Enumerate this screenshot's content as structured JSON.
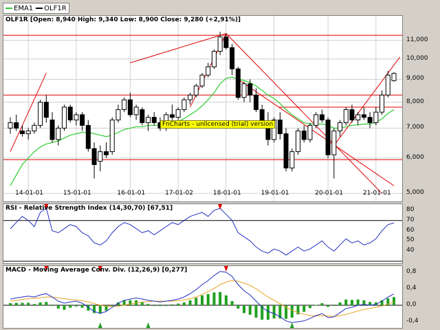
{
  "legend": [
    "EMA1",
    "OLF1R"
  ],
  "watermark": "FnCharts - unlicensed (trial) version",
  "colors": {
    "ema": "#2ecc2e",
    "trend": "#e00000",
    "rsi": "#2030c0",
    "macd": "#2030c0",
    "signal": "#e8a020",
    "hist": "#20a020"
  },
  "price_panel": {
    "title": "OLF1R [Open: 8,940  High: 9,340  Low: 8,900  Close: 9,280 (+2,91%)]"
  },
  "rsi_panel": {
    "title": "RSI - Relative Strength Index (14,30,70) [67,51]"
  },
  "macd_panel": {
    "title": "MACD - Moving Average Conv. Div. (12,26,9) [0,277]"
  },
  "chart_data": [
    {
      "type": "candlestick",
      "y_scale": "log",
      "ylim": [
        4.9,
        11.8
      ],
      "yticks": [
        "11,000",
        "10,000",
        "9,000",
        "8,000",
        "7,000",
        "6,000",
        "5,000"
      ],
      "ytick_values": [
        11,
        10,
        9,
        8,
        7,
        6,
        5
      ],
      "xticks": [
        "14-01-01",
        "15-01-01",
        "16-01-01",
        "17-01-02",
        "18-01-01",
        "19-01-01",
        "20-01-01",
        "21-01-01"
      ],
      "horizontal_levels": [
        11.3,
        8.3,
        7.8,
        5.95
      ],
      "candles": [
        [
          7.0,
          7.4,
          6.8,
          7.2
        ],
        [
          7.2,
          7.5,
          6.9,
          7.0
        ],
        [
          6.9,
          7.1,
          6.7,
          6.8
        ],
        [
          6.8,
          7.0,
          6.6,
          6.9
        ],
        [
          6.9,
          7.2,
          6.8,
          7.1
        ],
        [
          7.1,
          8.1,
          7.0,
          8.0
        ],
        [
          8.0,
          8.3,
          7.2,
          7.4
        ],
        [
          7.3,
          7.6,
          6.5,
          6.6
        ],
        [
          6.6,
          7.1,
          6.4,
          7.0
        ],
        [
          7.0,
          7.9,
          6.9,
          7.8
        ],
        [
          7.8,
          7.9,
          7.2,
          7.3
        ],
        [
          7.3,
          7.6,
          7.1,
          7.5
        ],
        [
          7.5,
          7.6,
          6.9,
          7.1
        ],
        [
          7.1,
          7.3,
          6.2,
          6.3
        ],
        [
          6.3,
          6.5,
          5.4,
          5.8
        ],
        [
          5.9,
          6.4,
          5.6,
          6.2
        ],
        [
          6.2,
          6.5,
          6.0,
          6.1
        ],
        [
          6.2,
          7.4,
          6.1,
          7.3
        ],
        [
          7.3,
          7.9,
          7.2,
          7.7
        ],
        [
          7.7,
          8.2,
          7.6,
          8.1
        ],
        [
          8.1,
          8.4,
          7.4,
          7.5
        ],
        [
          7.5,
          7.9,
          7.3,
          7.8
        ],
        [
          7.7,
          7.8,
          7.1,
          7.2
        ],
        [
          7.2,
          7.5,
          6.9,
          7.4
        ],
        [
          7.4,
          7.6,
          7.1,
          7.2
        ],
        [
          7.2,
          7.4,
          6.9,
          7.0
        ],
        [
          7.0,
          7.6,
          6.9,
          7.5
        ],
        [
          7.5,
          7.9,
          7.3,
          7.4
        ],
        [
          7.4,
          7.8,
          7.3,
          7.7
        ],
        [
          7.7,
          8.2,
          7.6,
          8.1
        ],
        [
          8.1,
          8.4,
          7.9,
          8.3
        ],
        [
          8.3,
          8.8,
          8.2,
          8.7
        ],
        [
          8.7,
          9.3,
          8.6,
          9.2
        ],
        [
          9.2,
          9.8,
          9.1,
          9.6
        ],
        [
          9.6,
          10.5,
          9.5,
          10.4
        ],
        [
          10.4,
          11.5,
          10.2,
          11.2
        ],
        [
          11.2,
          11.4,
          10.5,
          10.6
        ],
        [
          10.6,
          10.8,
          9.2,
          9.5
        ],
        [
          9.5,
          9.6,
          8.1,
          8.2
        ],
        [
          8.2,
          8.9,
          8.0,
          8.8
        ],
        [
          8.8,
          9.0,
          8.0,
          8.3
        ],
        [
          8.3,
          8.6,
          7.6,
          7.7
        ],
        [
          7.7,
          7.9,
          7.0,
          7.2
        ],
        [
          7.2,
          7.6,
          6.4,
          6.6
        ],
        [
          6.6,
          7.4,
          6.5,
          7.3
        ],
        [
          7.3,
          7.6,
          6.6,
          6.8
        ],
        [
          6.8,
          7.0,
          5.6,
          5.7
        ],
        [
          5.7,
          6.3,
          5.6,
          6.2
        ],
        [
          6.2,
          7.0,
          6.1,
          6.9
        ],
        [
          6.9,
          7.1,
          6.5,
          6.6
        ],
        [
          6.6,
          7.2,
          6.5,
          7.1
        ],
        [
          7.1,
          7.6,
          7.0,
          7.5
        ],
        [
          7.5,
          7.7,
          7.2,
          7.3
        ],
        [
          7.3,
          7.4,
          6.0,
          6.1
        ],
        [
          6.1,
          7.0,
          5.4,
          6.9
        ],
        [
          6.9,
          7.3,
          6.7,
          7.2
        ],
        [
          7.2,
          7.8,
          7.1,
          7.7
        ],
        [
          7.7,
          7.9,
          7.2,
          7.3
        ],
        [
          7.3,
          7.6,
          7.1,
          7.5
        ],
        [
          7.5,
          7.8,
          7.3,
          7.4
        ],
        [
          7.4,
          7.6,
          7.0,
          7.2
        ],
        [
          7.2,
          7.8,
          7.1,
          7.6
        ],
        [
          7.6,
          8.5,
          7.5,
          8.3
        ],
        [
          8.3,
          9.4,
          8.2,
          9.2
        ],
        [
          8.94,
          9.34,
          8.9,
          9.28
        ]
      ],
      "ema": [
        5.2,
        5.5,
        5.8,
        6.0,
        6.2,
        6.35,
        6.45,
        6.5,
        6.55,
        6.65,
        6.75,
        6.8,
        6.85,
        6.85,
        6.8,
        6.75,
        6.7,
        6.75,
        6.85,
        6.95,
        7.0,
        7.05,
        7.05,
        7.1,
        7.1,
        7.1,
        7.15,
        7.2,
        7.25,
        7.35,
        7.5,
        7.65,
        7.85,
        8.1,
        8.4,
        8.8,
        9.05,
        9.1,
        9.0,
        8.95,
        8.85,
        8.7,
        8.5,
        8.3,
        8.15,
        7.95,
        7.7,
        7.5,
        7.35,
        7.2,
        7.15,
        7.15,
        7.15,
        7.1,
        7.0,
        7.0,
        7.05,
        7.1,
        7.12,
        7.15,
        7.15,
        7.2,
        7.35,
        7.55,
        7.7
      ]
    },
    {
      "type": "line",
      "name": "RSI",
      "ylim": [
        28,
        86
      ],
      "yticks": [
        80,
        70,
        60,
        50,
        40
      ],
      "levels": [
        70,
        30
      ],
      "values": [
        62,
        68,
        74,
        70,
        64,
        78,
        82,
        60,
        58,
        62,
        66,
        64,
        58,
        55,
        48,
        46,
        50,
        58,
        64,
        68,
        66,
        62,
        58,
        60,
        56,
        60,
        64,
        68,
        66,
        70,
        74,
        76,
        78,
        74,
        80,
        82,
        76,
        70,
        58,
        54,
        50,
        44,
        40,
        38,
        42,
        40,
        36,
        40,
        44,
        40,
        42,
        46,
        50,
        44,
        40,
        46,
        52,
        48,
        50,
        46,
        48,
        52,
        60,
        66,
        67.51
      ]
    },
    {
      "type": "line",
      "name": "MACD",
      "ylim": [
        -0.55,
        0.95
      ],
      "yticks": [
        "0,8",
        "0,4",
        "0,0",
        "-0,4"
      ],
      "ytick_values": [
        0.8,
        0.4,
        0.0,
        -0.4
      ],
      "macd": [
        0.15,
        0.18,
        0.2,
        0.22,
        0.2,
        0.25,
        0.28,
        0.2,
        0.1,
        0.05,
        0.08,
        0.1,
        0.05,
        -0.05,
        -0.15,
        -0.2,
        -0.15,
        -0.05,
        0.05,
        0.12,
        0.15,
        0.18,
        0.15,
        0.12,
        0.1,
        0.08,
        0.1,
        0.12,
        0.15,
        0.2,
        0.28,
        0.38,
        0.5,
        0.6,
        0.72,
        0.82,
        0.8,
        0.7,
        0.5,
        0.35,
        0.25,
        0.1,
        -0.05,
        -0.15,
        -0.2,
        -0.28,
        -0.38,
        -0.42,
        -0.4,
        -0.38,
        -0.32,
        -0.25,
        -0.2,
        -0.3,
        -0.28,
        -0.18,
        -0.08,
        -0.05,
        0.0,
        0.02,
        0.0,
        0.02,
        0.1,
        0.2,
        0.277
      ],
      "signal": [
        0.1,
        0.12,
        0.14,
        0.16,
        0.17,
        0.18,
        0.2,
        0.2,
        0.18,
        0.16,
        0.14,
        0.13,
        0.11,
        0.08,
        0.04,
        0.0,
        -0.02,
        -0.03,
        -0.02,
        0.0,
        0.03,
        0.06,
        0.08,
        0.09,
        0.1,
        0.1,
        0.1,
        0.1,
        0.11,
        0.13,
        0.16,
        0.2,
        0.26,
        0.33,
        0.41,
        0.5,
        0.56,
        0.6,
        0.58,
        0.54,
        0.48,
        0.4,
        0.3,
        0.2,
        0.12,
        0.04,
        -0.05,
        -0.12,
        -0.18,
        -0.22,
        -0.25,
        -0.26,
        -0.25,
        -0.26,
        -0.27,
        -0.25,
        -0.22,
        -0.18,
        -0.14,
        -0.1,
        -0.08,
        -0.05,
        -0.02,
        0.03,
        0.08
      ]
    }
  ]
}
